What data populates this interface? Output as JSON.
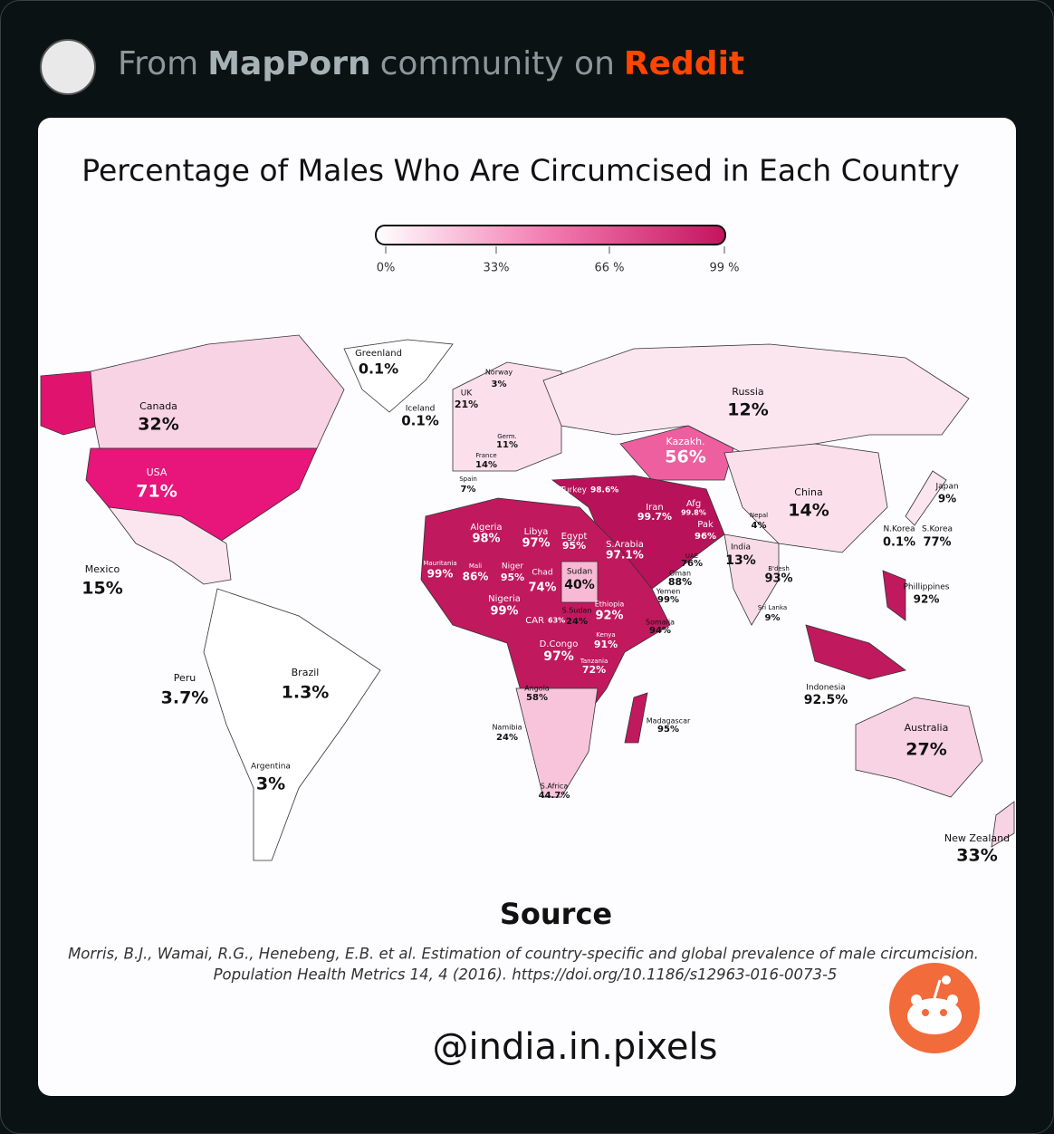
{
  "header": {
    "prefix": "From",
    "community": "MapPorn",
    "middle": "community on",
    "platform": "Reddit"
  },
  "map": {
    "title": "Percentage of Males Who Are Circumcised in Each Country",
    "legend": {
      "ticks": [
        "0%",
        "33%",
        "66 %",
        "99 %"
      ]
    },
    "labels": [
      {
        "name": "Greenland",
        "value": "0.1%"
      },
      {
        "name": "Canada",
        "value": "32%"
      },
      {
        "name": "Iceland",
        "value": "0.1%"
      },
      {
        "name": "UK",
        "value": "21%"
      },
      {
        "name": "Norway",
        "value": "3%"
      },
      {
        "name": "Russia",
        "value": "12%"
      },
      {
        "name": "Germ.",
        "value": "11%"
      },
      {
        "name": "France",
        "value": "14%"
      },
      {
        "name": "Spain",
        "value": "7%"
      },
      {
        "name": "USA",
        "value": "71%"
      },
      {
        "name": "Kazakh.",
        "value": "56%"
      },
      {
        "name": "Turkey",
        "value": "98.6%"
      },
      {
        "name": "Japan",
        "value": "9%"
      },
      {
        "name": "China",
        "value": "14%"
      },
      {
        "name": "Afg",
        "value": "99.8%"
      },
      {
        "name": "Iran",
        "value": "99.7%"
      },
      {
        "name": "Nepal",
        "value": "4%"
      },
      {
        "name": "Pak",
        "value": "96%"
      },
      {
        "name": "N.Korea",
        "value": "0.1%"
      },
      {
        "name": "S.Korea",
        "value": "77%"
      },
      {
        "name": "Algeria",
        "value": "98%"
      },
      {
        "name": "Libya",
        "value": "97%"
      },
      {
        "name": "Egypt",
        "value": "95%"
      },
      {
        "name": "S.Arabia",
        "value": "97.1%"
      },
      {
        "name": "UAE",
        "value": "76%"
      },
      {
        "name": "India",
        "value": "13%"
      },
      {
        "name": "Mexico",
        "value": "15%"
      },
      {
        "name": "Mauritania",
        "value": "99%"
      },
      {
        "name": "Mali",
        "value": "86%"
      },
      {
        "name": "Niger",
        "value": "95%"
      },
      {
        "name": "Chad",
        "value": "74%"
      },
      {
        "name": "Sudan",
        "value": "40%"
      },
      {
        "name": "Oman",
        "value": "88%"
      },
      {
        "name": "B'desh",
        "value": "93%"
      },
      {
        "name": "Phillippines",
        "value": "92%"
      },
      {
        "name": "Yemen",
        "value": "99%"
      },
      {
        "name": "Nigeria",
        "value": "99%"
      },
      {
        "name": "Sri Lanka",
        "value": "9%"
      },
      {
        "name": "Ethiopia",
        "value": "92%"
      },
      {
        "name": "S.Sudan",
        "value": "24%"
      },
      {
        "name": "CAR",
        "value": "63%"
      },
      {
        "name": "Somalia",
        "value": "94%"
      },
      {
        "name": "Kenya",
        "value": "91%"
      },
      {
        "name": "D.Congo",
        "value": "97%"
      },
      {
        "name": "Tanzania",
        "value": "72%"
      },
      {
        "name": "Peru",
        "value": "3.7%"
      },
      {
        "name": "Brazil",
        "value": "1.3%"
      },
      {
        "name": "Angola",
        "value": "58%"
      },
      {
        "name": "Indonesia",
        "value": "92.5%"
      },
      {
        "name": "Madagascar",
        "value": "95%"
      },
      {
        "name": "Australia",
        "value": "27%"
      },
      {
        "name": "Namibia",
        "value": "24%"
      },
      {
        "name": "Argentina",
        "value": "3%"
      },
      {
        "name": "S.Africa",
        "value": "44.7%"
      },
      {
        "name": "New Zealand",
        "value": "33%"
      }
    ]
  },
  "source": {
    "heading": "Source",
    "citation": [
      "Morris, B.J., Wamai, R.G., Henebeng, E.B. et al. Estimation of country-specific and global prevalence of male circumcision.",
      "Population Health Metrics 14, 4 (2016). https://doi.org/10.1186/s12963-016-0073-5"
    ]
  },
  "handle": "@india.in.pixels"
}
